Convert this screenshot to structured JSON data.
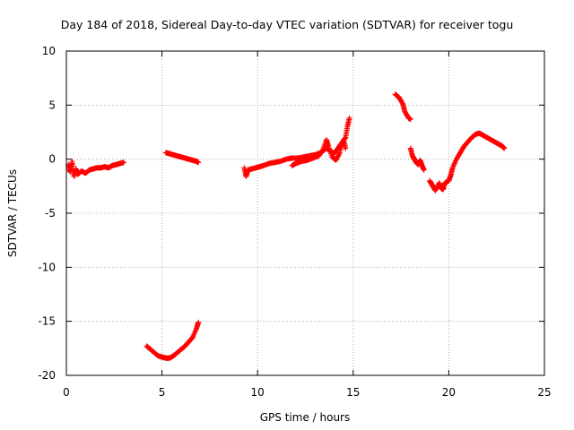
{
  "chart_data": {
    "type": "scatter",
    "title": "Day 184 of 2018, Sidereal Day-to-day VTEC variation (SDTVAR) for receiver togu",
    "xlabel": "GPS time / hours",
    "ylabel": "SDTVAR / TECUs",
    "xlim": [
      0,
      25
    ],
    "ylim": [
      -20,
      10
    ],
    "grid": true,
    "marker": "+",
    "x_ticks": [
      0,
      5,
      10,
      15,
      20,
      25
    ],
    "y_ticks": [
      -20,
      -15,
      -10,
      -5,
      0,
      5,
      10
    ],
    "x_tick_labels": [
      "0",
      "5",
      "10",
      "15",
      "20",
      "25"
    ],
    "y_tick_labels": [
      "-20",
      "-15",
      "-10",
      "-5",
      "0",
      "5",
      "10"
    ],
    "series": [
      {
        "name": "togu",
        "color": "#ff0000",
        "segments": [
          [
            [
              0.1,
              -0.5
            ],
            [
              0.2,
              -1.2
            ],
            [
              0.3,
              -0.2
            ],
            [
              0.4,
              -1.6
            ],
            [
              0.5,
              -0.9
            ],
            [
              0.6,
              -1.4
            ],
            [
              0.8,
              -1.1
            ],
            [
              1.0,
              -1.3
            ],
            [
              1.2,
              -1.0
            ],
            [
              1.4,
              -0.9
            ],
            [
              1.6,
              -0.8
            ],
            [
              1.8,
              -0.8
            ],
            [
              2.0,
              -0.7
            ],
            [
              2.2,
              -0.8
            ],
            [
              2.4,
              -0.6
            ],
            [
              2.6,
              -0.5
            ],
            [
              2.8,
              -0.4
            ],
            [
              3.0,
              -0.3
            ]
          ],
          [
            [
              5.2,
              0.6
            ],
            [
              5.4,
              0.5
            ],
            [
              5.6,
              0.4
            ],
            [
              5.8,
              0.3
            ],
            [
              6.0,
              0.2
            ],
            [
              6.2,
              0.1
            ],
            [
              6.4,
              0.0
            ],
            [
              6.6,
              -0.1
            ],
            [
              6.8,
              -0.2
            ],
            [
              6.9,
              -0.3
            ]
          ],
          [
            [
              4.2,
              -17.3
            ],
            [
              4.4,
              -17.6
            ],
            [
              4.6,
              -17.9
            ],
            [
              4.8,
              -18.2
            ],
            [
              5.0,
              -18.3
            ],
            [
              5.2,
              -18.4
            ],
            [
              5.4,
              -18.4
            ],
            [
              5.6,
              -18.2
            ],
            [
              5.8,
              -17.9
            ],
            [
              6.0,
              -17.6
            ],
            [
              6.2,
              -17.3
            ],
            [
              6.4,
              -16.9
            ],
            [
              6.6,
              -16.5
            ],
            [
              6.8,
              -15.7
            ],
            [
              6.9,
              -15.1
            ]
          ],
          [
            [
              9.3,
              -0.8
            ],
            [
              9.4,
              -1.6
            ],
            [
              9.5,
              -1.0
            ],
            [
              9.7,
              -0.9
            ],
            [
              9.9,
              -0.8
            ],
            [
              10.1,
              -0.7
            ],
            [
              10.3,
              -0.6
            ],
            [
              10.6,
              -0.4
            ],
            [
              10.9,
              -0.3
            ],
            [
              11.2,
              -0.2
            ],
            [
              11.5,
              0.0
            ],
            [
              11.8,
              0.1
            ],
            [
              12.1,
              0.1
            ],
            [
              12.4,
              0.2
            ],
            [
              12.7,
              0.3
            ],
            [
              13.0,
              0.4
            ],
            [
              13.3,
              0.6
            ],
            [
              13.6,
              1.0
            ],
            [
              13.8,
              0.8
            ],
            [
              14.0,
              0.5
            ],
            [
              14.2,
              1.0
            ],
            [
              14.4,
              1.5
            ],
            [
              14.6,
              2.0
            ],
            [
              14.7,
              3.0
            ],
            [
              14.8,
              3.8
            ]
          ],
          [
            [
              11.8,
              -0.6
            ],
            [
              12.0,
              -0.4
            ],
            [
              12.3,
              -0.2
            ],
            [
              12.6,
              -0.1
            ],
            [
              12.9,
              0.1
            ],
            [
              13.2,
              0.3
            ],
            [
              13.4,
              0.8
            ],
            [
              13.6,
              1.8
            ],
            [
              13.7,
              1.2
            ],
            [
              13.9,
              0.2
            ],
            [
              14.1,
              -0.1
            ],
            [
              14.3,
              0.6
            ],
            [
              14.5,
              1.8
            ],
            [
              14.6,
              1.0
            ]
          ],
          [
            [
              17.2,
              6.0
            ],
            [
              17.4,
              5.7
            ],
            [
              17.6,
              5.1
            ],
            [
              17.7,
              4.4
            ],
            [
              17.9,
              3.8
            ],
            [
              18.0,
              3.7
            ]
          ],
          [
            [
              18.0,
              1.0
            ],
            [
              18.1,
              0.3
            ],
            [
              18.2,
              0.0
            ],
            [
              18.3,
              -0.3
            ],
            [
              18.4,
              -0.5
            ],
            [
              18.5,
              -0.1
            ],
            [
              18.6,
              -0.6
            ],
            [
              18.7,
              -1.0
            ]
          ],
          [
            [
              19.0,
              -2.0
            ],
            [
              19.1,
              -2.3
            ],
            [
              19.2,
              -2.6
            ],
            [
              19.3,
              -2.9
            ],
            [
              19.5,
              -2.2
            ],
            [
              19.6,
              -2.7
            ],
            [
              19.7,
              -2.8
            ],
            [
              19.8,
              -2.2
            ],
            [
              20.0,
              -2.0
            ],
            [
              20.1,
              -1.5
            ],
            [
              20.2,
              -0.8
            ],
            [
              20.4,
              0.0
            ],
            [
              20.6,
              0.6
            ],
            [
              20.8,
              1.2
            ],
            [
              21.0,
              1.6
            ],
            [
              21.2,
              2.0
            ],
            [
              21.4,
              2.3
            ],
            [
              21.6,
              2.4
            ],
            [
              21.8,
              2.2
            ],
            [
              22.0,
              2.0
            ],
            [
              22.2,
              1.8
            ],
            [
              22.4,
              1.6
            ],
            [
              22.6,
              1.4
            ],
            [
              22.8,
              1.2
            ],
            [
              22.9,
              1.0
            ]
          ]
        ]
      }
    ]
  }
}
